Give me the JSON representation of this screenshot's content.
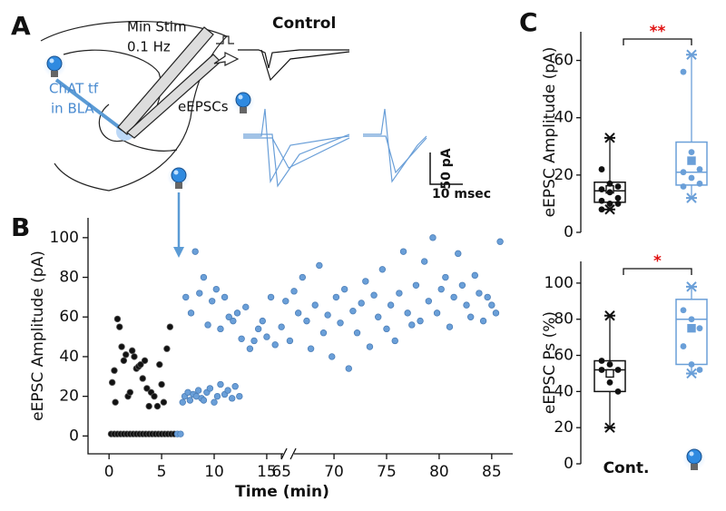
{
  "figure": {
    "panel_labels": [
      "A",
      "B",
      "C"
    ],
    "diagram": {
      "stim": "Min Stim",
      "freq": "0.1 Hz",
      "control": "Control",
      "recording": "eEPSCs",
      "transfection": "ChAT tf",
      "region": "in BLA",
      "scale_y": "50 pA",
      "scale_x": "10 msec"
    }
  },
  "chart_data": [
    {
      "type": "scatter",
      "ylabel": "eEPSC Amplitude (pA)",
      "xlabel": "Time (min)",
      "xlim": [
        -2,
        87
      ],
      "ylim": [
        -9,
        110
      ],
      "xticks": [
        0,
        5,
        10,
        15,
        65,
        70,
        75,
        80,
        85
      ],
      "yticks": [
        0,
        20,
        40,
        60,
        80,
        100
      ],
      "axis_break": true,
      "series": [
        {
          "color": "#111111",
          "x": [
            0.2,
            0.5,
            0.8,
            1.1,
            1.4,
            1.7,
            2.0,
            2.3,
            2.6,
            2.9,
            3.2,
            3.5,
            3.8,
            4.1,
            4.4,
            4.7,
            5.0,
            5.3,
            5.6,
            5.9,
            6.2,
            0.3,
            0.5,
            0.6,
            0.8,
            1.0,
            1.2,
            1.4,
            1.6,
            1.8,
            2.0,
            2.2,
            2.4,
            2.6,
            2.8,
            3.0,
            3.2,
            3.4,
            3.6,
            3.8,
            4.0,
            4.3,
            4.6,
            4.8,
            5.0,
            5.2,
            5.5,
            5.8
          ],
          "values": [
            1,
            1,
            1,
            1,
            1,
            1,
            1,
            1,
            1,
            1,
            1,
            1,
            1,
            1,
            1,
            1,
            1,
            1,
            1,
            1,
            1,
            27,
            33,
            17,
            59,
            55,
            45,
            38,
            41,
            20,
            22,
            43,
            40,
            34,
            35,
            36,
            29,
            38,
            24,
            15,
            22,
            20,
            15,
            36,
            26,
            17,
            44,
            55
          ]
        },
        {
          "color": "#6a9fd8",
          "x": [
            6.5,
            6.8,
            7.0,
            7.2,
            7.5,
            7.7,
            8.0,
            8.3,
            8.5,
            8.8,
            9.0,
            9.3,
            9.6,
            10.0,
            10.3,
            10.6,
            11.0,
            11.3,
            11.7,
            12.0,
            12.4,
            7.3,
            7.8,
            8.2,
            8.6,
            9.0,
            9.4,
            9.8,
            10.2,
            10.6,
            11.0,
            11.4,
            11.8,
            12.2,
            12.6,
            13.0,
            13.4,
            13.8,
            14.2,
            14.6,
            15.0,
            15.4,
            15.8,
            65.0,
            65.4,
            65.8,
            66.2,
            66.6,
            67.0,
            67.4,
            67.8,
            68.2,
            68.6,
            69.0,
            69.4,
            69.8,
            70.2,
            70.6,
            71.0,
            71.4,
            71.8,
            72.2,
            72.6,
            73.0,
            73.4,
            73.8,
            74.2,
            74.6,
            75.0,
            75.4,
            75.8,
            76.2,
            76.6,
            77.0,
            77.4,
            77.8,
            78.2,
            78.6,
            79.0,
            79.4,
            79.8,
            80.2,
            80.6,
            81.0,
            81.4,
            81.8,
            82.2,
            82.6,
            83.0,
            83.4,
            83.8,
            84.2,
            84.6,
            85.0,
            85.4,
            85.8
          ],
          "values": [
            1,
            1,
            17,
            20,
            22,
            18,
            21,
            20,
            23,
            19,
            18,
            22,
            24,
            17,
            20,
            26,
            21,
            23,
            19,
            25,
            20,
            70,
            62,
            93,
            72,
            80,
            56,
            68,
            74,
            54,
            70,
            60,
            58,
            62,
            49,
            65,
            44,
            48,
            54,
            58,
            50,
            70,
            46,
            55,
            68,
            48,
            73,
            62,
            80,
            58,
            44,
            66,
            86,
            52,
            61,
            40,
            70,
            57,
            74,
            34,
            63,
            52,
            67,
            78,
            45,
            71,
            60,
            84,
            54,
            66,
            48,
            72,
            93,
            62,
            56,
            76,
            58,
            88,
            68,
            100,
            62,
            74,
            80,
            55,
            70,
            92,
            76,
            66,
            60,
            81,
            72,
            58,
            70,
            66,
            62,
            98
          ]
        }
      ]
    },
    {
      "type": "box",
      "ylabel": "eEPSC Amplitude (pA)",
      "ylim": [
        0,
        70
      ],
      "yticks": [
        0,
        20,
        40,
        60
      ],
      "significance": "**",
      "groups": [
        {
          "color": "#111111",
          "q1": 10.5,
          "median": 14.5,
          "q3": 17.5,
          "mean": 15,
          "min": 8,
          "max": 33,
          "points": [
            22,
            17,
            16,
            15,
            14,
            12,
            11,
            10,
            10,
            8
          ]
        },
        {
          "color": "#6a9fd8",
          "q1": 16.5,
          "median": 21,
          "q3": 31.5,
          "mean": 25,
          "min": 12,
          "max": 62,
          "points": [
            56,
            28,
            22,
            21,
            19,
            17,
            16
          ]
        }
      ]
    },
    {
      "type": "box",
      "ylabel": "eEPSC Ps (%)",
      "ylim": [
        0,
        112
      ],
      "yticks": [
        0,
        20,
        40,
        60,
        80,
        100
      ],
      "significance": "*",
      "categories": [
        "Cont.",
        null
      ],
      "groups": [
        {
          "color": "#111111",
          "q1": 40,
          "median": 52,
          "q3": 57,
          "mean": 50,
          "min": 20,
          "max": 82,
          "points": [
            57,
            55,
            52,
            52,
            45,
            40
          ]
        },
        {
          "color": "#6a9fd8",
          "q1": 55,
          "median": 80,
          "q3": 91,
          "mean": 75,
          "min": 50,
          "max": 98,
          "points": [
            85,
            80,
            75,
            65,
            55,
            52
          ]
        }
      ]
    }
  ]
}
